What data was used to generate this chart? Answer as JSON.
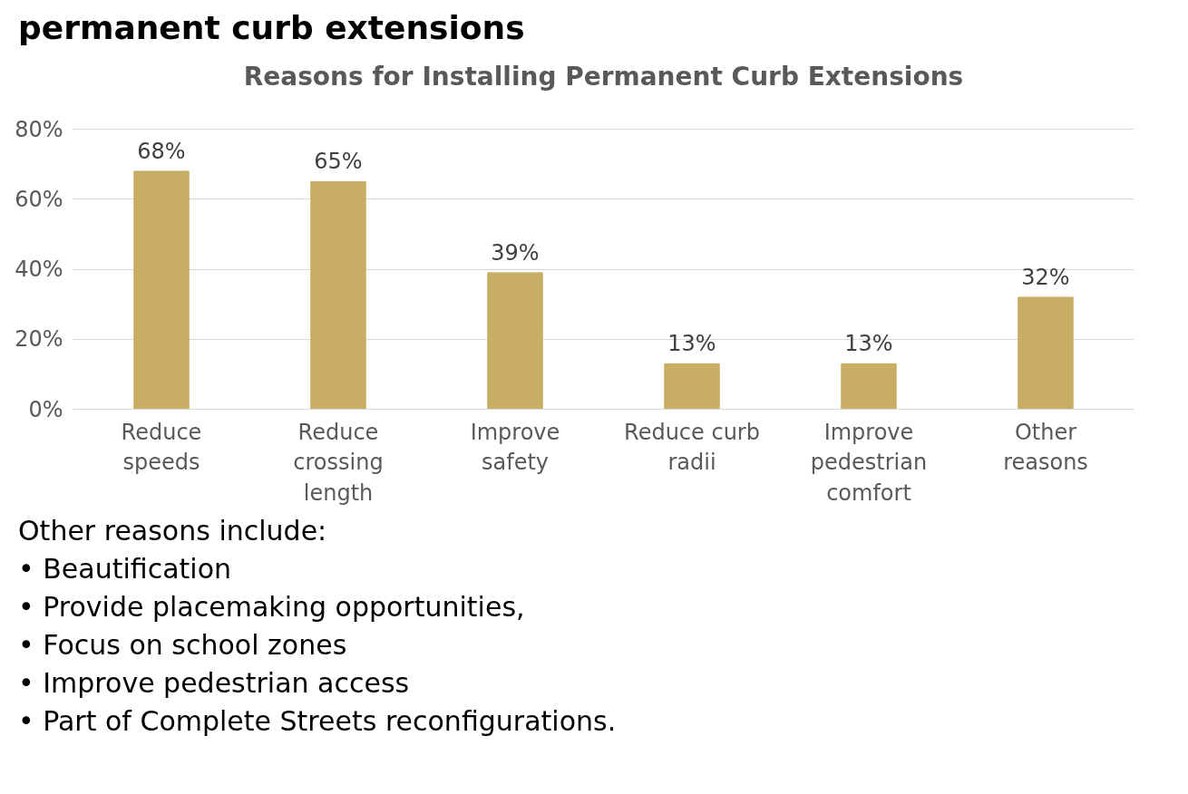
{
  "chart_data": {
    "type": "bar",
    "title": "permanent curb extensions",
    "subtitle": "Reasons for Installing Permanent Curb Extensions",
    "categories": [
      "Reduce speeds",
      "Reduce crossing length",
      "Improve safety",
      "Reduce curb radii",
      "Improve pedestrian comfort",
      "Other reasons"
    ],
    "values": [
      68,
      65,
      39,
      13,
      13,
      32
    ],
    "color": "#c8ad64",
    "value_labels": [
      "68%",
      "65%",
      "39%",
      "13%",
      "13%",
      "32%"
    ],
    "ylim": [
      0,
      80
    ],
    "yticks": [
      {
        "value": 0,
        "label": "0%"
      },
      {
        "value": 20,
        "label": "20%"
      },
      {
        "value": 40,
        "label": "40%"
      },
      {
        "value": 60,
        "label": "60%"
      },
      {
        "value": 80,
        "label": "80%"
      }
    ],
    "grid": "y",
    "annotations": [
      "Other reasons include:",
      "• Beautification",
      "• Provide placemaking opportunities,",
      "• Focus on school zones",
      "• Improve pedestrian access",
      "• Part of Complete Streets reconfigurations."
    ]
  }
}
